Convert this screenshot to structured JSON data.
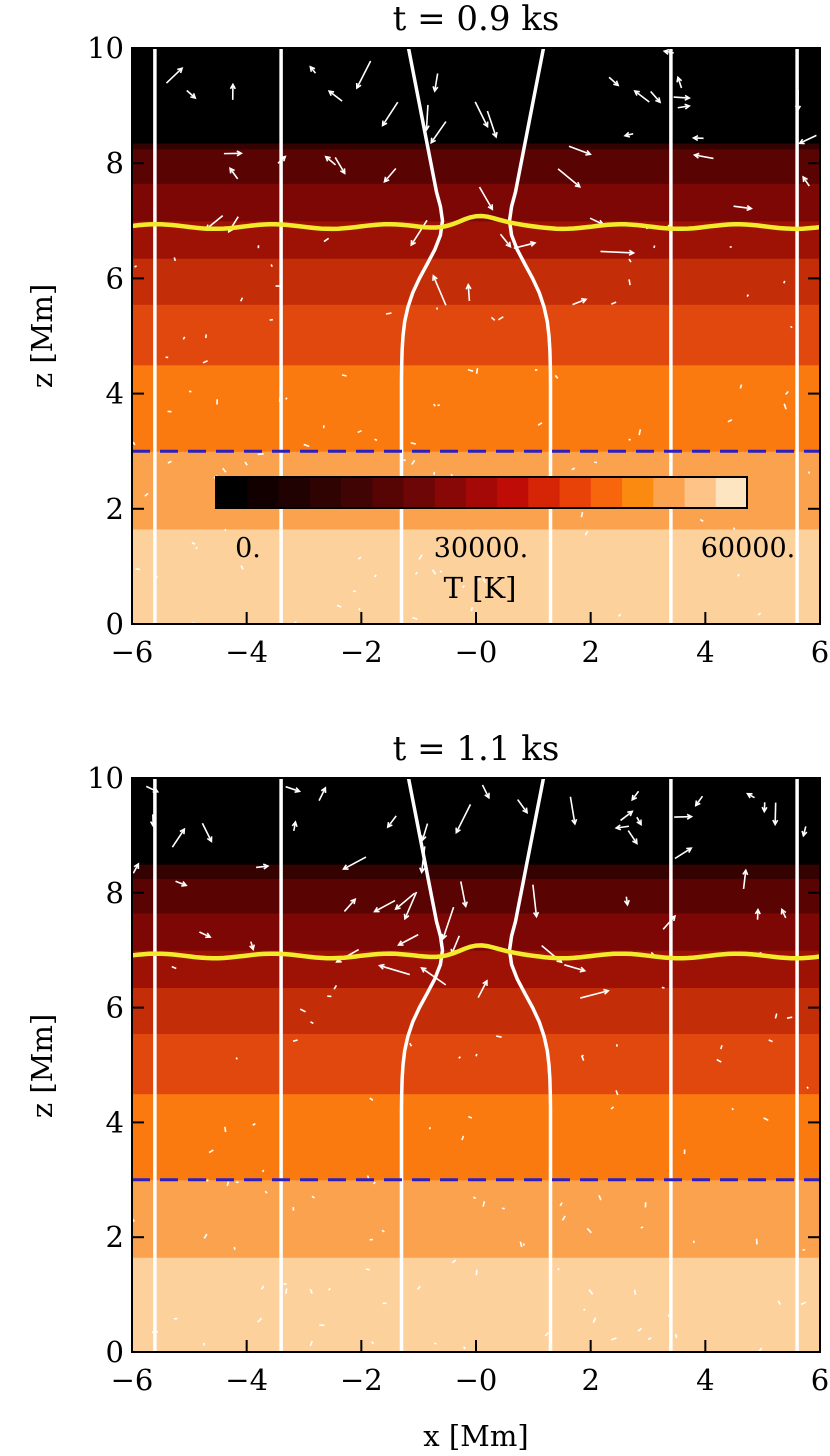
{
  "colors": {
    "temperature_bands_hot_to_cold": [
      "#fdd19b",
      "#fba24f",
      "#fb7a10",
      "#e0480d",
      "#c32d07",
      "#9e1206",
      "#7d0704",
      "#5a0303",
      "#350202",
      "#000000"
    ],
    "colorbar": [
      "#000000",
      "#120000",
      "#210202",
      "#300303",
      "#410404",
      "#560404",
      "#6d0606",
      "#880707",
      "#a40908",
      "#c00c06",
      "#d52506",
      "#e84208",
      "#f7650c",
      "#fb8a10",
      "#fba34f",
      "#fdc387",
      "#fee5c1"
    ],
    "field_lines": "#ffffff",
    "velocity_arrows": "#ffffff",
    "transition_region": "#f2ea2b",
    "reference_line": "#2c1fbf"
  },
  "chart_data": [
    {
      "type": "heatmap",
      "title": "t = 0.9 ks",
      "xlabel": "",
      "ylabel": "z [Mm]",
      "xlim": [
        -6,
        6
      ],
      "ylim": [
        0,
        10
      ],
      "xticks": [
        "−6",
        "−4",
        "−2",
        "−0",
        "2",
        "4",
        "6"
      ],
      "yticks": [
        "0",
        "2",
        "4",
        "6",
        "8",
        "10"
      ],
      "xtick_values": [
        -6,
        -4,
        -2,
        0,
        2,
        4,
        6
      ],
      "ytick_values": [
        0,
        2,
        4,
        6,
        8,
        10
      ],
      "temperature_band_boundaries_z": [
        1.65,
        3.0,
        4.5,
        5.55,
        6.35,
        7.0,
        7.65,
        8.25,
        8.35
      ],
      "transition_region_z": 6.9,
      "dashed_line_z": 3.0,
      "field_line_x": [
        -5.6,
        -3.4,
        -1.3,
        1.3,
        3.4,
        5.6
      ],
      "colorbar": {
        "label": "T [K]",
        "tick_labels": [
          "0.",
          "30000.",
          "60000."
        ],
        "range": [
          0,
          64000
        ]
      }
    },
    {
      "type": "heatmap",
      "title": "t = 1.1 ks",
      "xlabel": "x [Mm]",
      "ylabel": "z [Mm]",
      "xlim": [
        -6,
        6
      ],
      "ylim": [
        0,
        10
      ],
      "xticks": [
        "−6",
        "−4",
        "−2",
        "−0",
        "2",
        "4",
        "6"
      ],
      "yticks": [
        "0",
        "2",
        "4",
        "6",
        "8",
        "10"
      ],
      "xtick_values": [
        -6,
        -4,
        -2,
        0,
        2,
        4,
        6
      ],
      "ytick_values": [
        0,
        2,
        4,
        6,
        8,
        10
      ],
      "temperature_band_boundaries_z": [
        1.65,
        3.0,
        4.5,
        5.55,
        6.35,
        7.0,
        7.65,
        8.25,
        8.5
      ],
      "transition_region_z": 6.9,
      "dashed_line_z": 3.0,
      "field_line_x": [
        -5.6,
        -3.4,
        -1.3,
        1.3,
        3.4,
        5.6
      ]
    }
  ]
}
